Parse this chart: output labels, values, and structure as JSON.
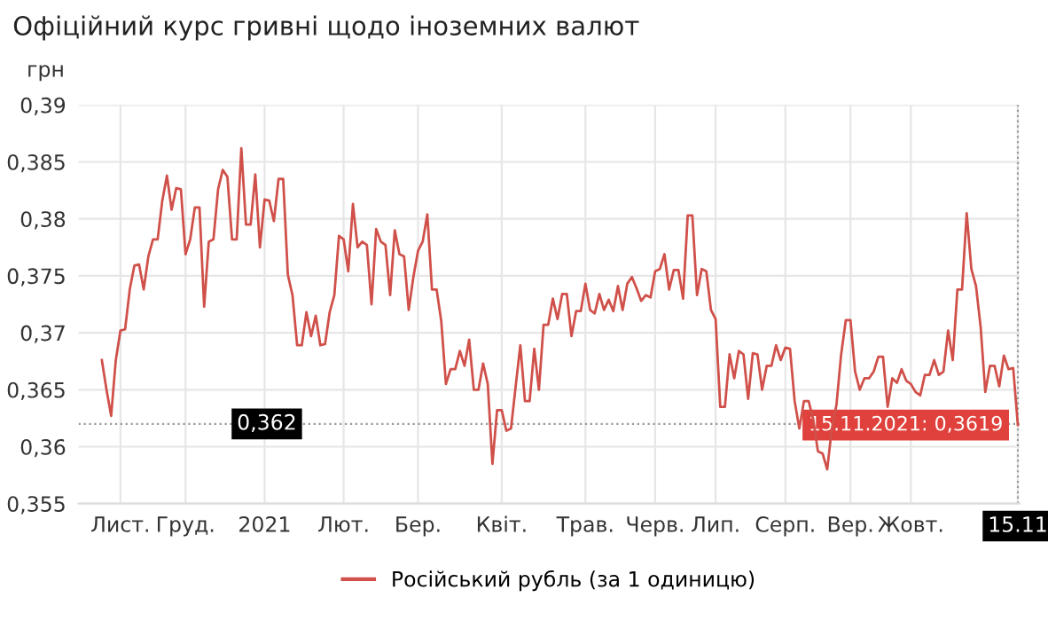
{
  "chart_data": {
    "type": "line",
    "title": "Офіційний курс гривні щодо іноземних валют",
    "ylabel": "грн",
    "ylim": [
      0.355,
      0.39
    ],
    "categories": [
      null,
      null,
      null,
      null,
      "Лист.",
      null,
      null,
      null,
      null,
      null,
      null,
      null,
      null,
      null,
      null,
      null,
      null,
      null,
      "Груд.",
      null,
      null,
      null,
      null,
      null,
      null,
      null,
      null,
      null,
      null,
      null,
      null,
      null,
      null,
      null,
      null,
      "2021",
      null,
      null,
      null,
      null,
      null,
      null,
      null,
      null,
      null,
      null,
      null,
      null,
      null,
      null,
      null,
      null,
      "Лют.",
      null,
      null,
      null,
      null,
      null,
      null,
      null,
      null,
      null,
      null,
      null,
      null,
      null,
      null,
      null,
      "Бер.",
      null,
      null,
      null,
      null,
      null,
      null,
      null,
      null,
      null,
      null,
      null,
      null,
      null,
      null,
      null,
      null,
      null,
      "Квіт.",
      null,
      null,
      null,
      null,
      null,
      null,
      null,
      null,
      null,
      null,
      null,
      null,
      null,
      null,
      null,
      null,
      null,
      "Трав.",
      null,
      null,
      null,
      null,
      null,
      null,
      null,
      null,
      null,
      null,
      null,
      null,
      null,
      null,
      "Черв.",
      null,
      null,
      null,
      null,
      null,
      null,
      null,
      null,
      null,
      null,
      null,
      null,
      "Лип.",
      null,
      null,
      null,
      null,
      null,
      null,
      null,
      null,
      null,
      null,
      null,
      null,
      null,
      null,
      "Серп.",
      null,
      null,
      null,
      null,
      null,
      null,
      null,
      null,
      null,
      null,
      null,
      null,
      null,
      "Вер.",
      null,
      null,
      null,
      null,
      null,
      null,
      null,
      null,
      null,
      null,
      null,
      null,
      "Жовт.",
      null,
      null,
      null,
      null,
      null,
      null,
      null,
      null,
      null,
      null,
      null,
      null,
      null,
      null,
      null,
      null,
      null,
      null,
      null,
      null,
      null,
      null,
      "15.11"
    ],
    "yticks": [
      {
        "value": 0.355,
        "label": "0,355"
      },
      {
        "value": 0.36,
        "label": "0,36"
      },
      {
        "value": 0.365,
        "label": "0,365"
      },
      {
        "value": 0.37,
        "label": "0,37"
      },
      {
        "value": 0.375,
        "label": "0,375"
      },
      {
        "value": 0.38,
        "label": "0,38"
      },
      {
        "value": 0.385,
        "label": "0,385"
      },
      {
        "value": 0.39,
        "label": "0,39"
      }
    ],
    "grid": true,
    "legend": "bottom",
    "marker": "none",
    "line_style": "solid",
    "ref_lines": [
      {
        "axis": "y",
        "value": 0.362,
        "label": "0,362",
        "color": "#999999",
        "line_style": "dotted"
      },
      {
        "axis": "x",
        "value": "15.11",
        "color": "#999999",
        "line_style": "dotted"
      }
    ],
    "annotations": [
      {
        "text": "15.11.2021: 0,3619",
        "x": "15.11",
        "y": 0.3619
      }
    ],
    "series": [
      {
        "name": "Російський рубль (за 1 одиницю)",
        "color": "#d0504a",
        "values": [
          0.3676,
          0.365,
          0.3627,
          0.3676,
          0.3702,
          0.3703,
          0.3738,
          0.3759,
          0.376,
          0.3738,
          0.3767,
          0.3782,
          0.3782,
          0.3816,
          0.3838,
          0.3808,
          0.3827,
          0.3826,
          0.3769,
          0.3782,
          0.381,
          0.381,
          0.3723,
          0.378,
          0.3782,
          0.3826,
          0.3843,
          0.3837,
          0.3782,
          0.3782,
          0.3862,
          0.3795,
          0.3795,
          0.3839,
          0.3775,
          0.3817,
          0.3816,
          0.3798,
          0.3835,
          0.3835,
          0.3751,
          0.3733,
          0.3689,
          0.3689,
          0.3718,
          0.3697,
          0.3715,
          0.3689,
          0.369,
          0.3718,
          0.3733,
          0.3785,
          0.3782,
          0.3754,
          0.3813,
          0.3775,
          0.378,
          0.3777,
          0.3725,
          0.3791,
          0.378,
          0.3777,
          0.3733,
          0.379,
          0.3769,
          0.3767,
          0.372,
          0.3749,
          0.3772,
          0.378,
          0.3804,
          0.3738,
          0.3738,
          0.371,
          0.3655,
          0.3668,
          0.3668,
          0.3684,
          0.3671,
          0.3694,
          0.365,
          0.365,
          0.3673,
          0.3655,
          0.3585,
          0.3632,
          0.3632,
          0.3614,
          0.3616,
          0.3653,
          0.3689,
          0.364,
          0.364,
          0.3686,
          0.365,
          0.3707,
          0.3707,
          0.373,
          0.3712,
          0.3734,
          0.3734,
          0.3697,
          0.3719,
          0.3719,
          0.3743,
          0.372,
          0.3717,
          0.3734,
          0.372,
          0.3729,
          0.3719,
          0.3741,
          0.372,
          0.3743,
          0.3749,
          0.3739,
          0.3728,
          0.3733,
          0.3731,
          0.3754,
          0.3756,
          0.3769,
          0.3738,
          0.3755,
          0.3755,
          0.373,
          0.3803,
          0.3803,
          0.3733,
          0.3756,
          0.3754,
          0.372,
          0.3712,
          0.3635,
          0.3635,
          0.3681,
          0.366,
          0.3684,
          0.3681,
          0.3642,
          0.3682,
          0.3681,
          0.365,
          0.3671,
          0.3671,
          0.3689,
          0.3676,
          0.3687,
          0.3686,
          0.364,
          0.3616,
          0.364,
          0.364,
          0.3624,
          0.3596,
          0.3594,
          0.358,
          0.3616,
          0.3637,
          0.3681,
          0.3711,
          0.3711,
          0.3666,
          0.365,
          0.366,
          0.366,
          0.3666,
          0.3679,
          0.3679,
          0.3635,
          0.366,
          0.3656,
          0.3668,
          0.3658,
          0.3655,
          0.3648,
          0.3645,
          0.3663,
          0.3663,
          0.3676,
          0.3663,
          0.3666,
          0.3702,
          0.3676,
          0.3738,
          0.3738,
          0.3805,
          0.3756,
          0.3741,
          0.3705,
          0.3648,
          0.3671,
          0.3671,
          0.3653,
          0.368,
          0.3668,
          0.3669,
          0.3619
        ]
      }
    ]
  }
}
